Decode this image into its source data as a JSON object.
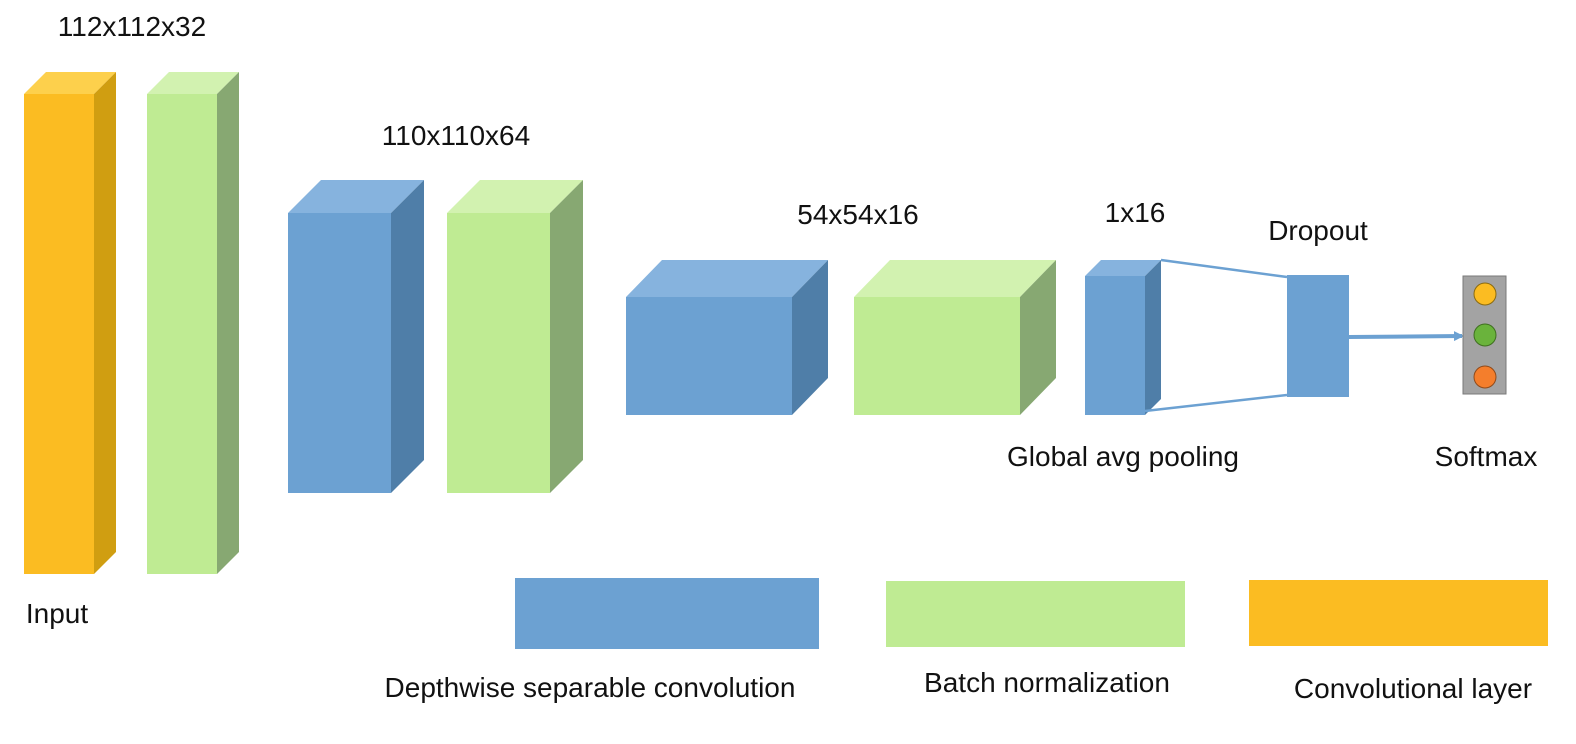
{
  "colors": {
    "conv": "#FBBC22",
    "conv_top": "#FDD04C",
    "conv_side": "#D09E11",
    "dsc": "#6CA1D2",
    "dsc_top": "#86B3DE",
    "dsc_side": "#4F7EA8",
    "bn": "#BFEB93",
    "bn_top": "#D2F2B0",
    "bn_side": "#87A872",
    "softmax_box": "#A3A3A3",
    "softmax_yellow": "#FBBC22",
    "softmax_green": "#6AB33C",
    "softmax_orange": "#F47E2C"
  },
  "labels": {
    "dim_input": "112x112x32",
    "dim_stage2": "110x110x64",
    "dim_stage3": "54x54x16",
    "dim_pool": "1x16",
    "dropout": "Dropout",
    "global_pool": "Global avg pooling",
    "softmax": "Softmax",
    "input": "Input"
  },
  "legend": {
    "dsc": "Depthwise separable convolution",
    "bn": "Batch normalization",
    "conv": "Convolutional layer"
  }
}
